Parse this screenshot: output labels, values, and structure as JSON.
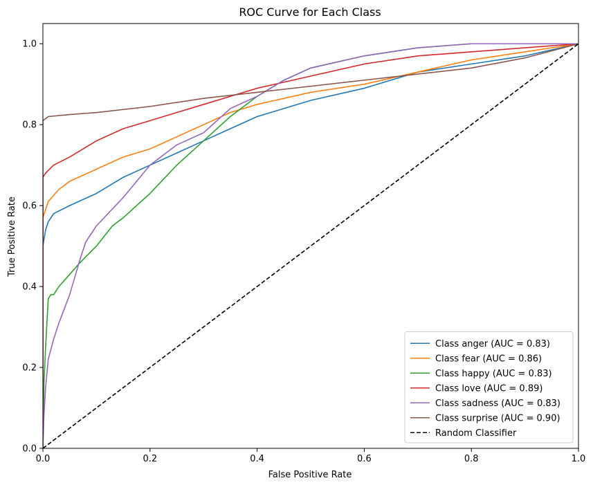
{
  "chart_data": {
    "type": "line",
    "title": "ROC Curve for Each Class",
    "xlabel": "False Positive Rate",
    "ylabel": "True Positive Rate",
    "xlim": [
      0.0,
      1.0
    ],
    "ylim": [
      0.0,
      1.05
    ],
    "xticks": [
      "0.0",
      "0.2",
      "0.4",
      "0.6",
      "0.8",
      "1.0"
    ],
    "yticks": [
      "0.0",
      "0.2",
      "0.4",
      "0.6",
      "0.8",
      "1.0"
    ],
    "grid": false,
    "legend_position": "bottom-right",
    "series": [
      {
        "name": "Class anger (AUC = 0.83)",
        "color": "#1f77b4",
        "dash": "solid",
        "x": [
          0.0,
          0.0,
          0.005,
          0.01,
          0.02,
          0.05,
          0.1,
          0.15,
          0.2,
          0.25,
          0.3,
          0.35,
          0.4,
          0.5,
          0.6,
          0.7,
          0.8,
          0.9,
          1.0
        ],
        "y": [
          0.0,
          0.5,
          0.54,
          0.56,
          0.58,
          0.6,
          0.63,
          0.67,
          0.7,
          0.73,
          0.76,
          0.79,
          0.82,
          0.86,
          0.89,
          0.93,
          0.95,
          0.97,
          1.0
        ]
      },
      {
        "name": "Class fear (AUC = 0.86)",
        "color": "#ff7f0e",
        "dash": "solid",
        "x": [
          0.0,
          0.0,
          0.005,
          0.01,
          0.03,
          0.05,
          0.1,
          0.15,
          0.2,
          0.25,
          0.3,
          0.35,
          0.4,
          0.5,
          0.6,
          0.7,
          0.8,
          0.9,
          1.0
        ],
        "y": [
          0.0,
          0.57,
          0.59,
          0.61,
          0.64,
          0.66,
          0.69,
          0.72,
          0.74,
          0.77,
          0.8,
          0.83,
          0.85,
          0.88,
          0.9,
          0.93,
          0.96,
          0.98,
          1.0
        ]
      },
      {
        "name": "Class happy (AUC = 0.83)",
        "color": "#2ca02c",
        "dash": "solid",
        "x": [
          0.0,
          0.002,
          0.005,
          0.01,
          0.015,
          0.02,
          0.03,
          0.05,
          0.07,
          0.1,
          0.13,
          0.15,
          0.2,
          0.25,
          0.3,
          0.35,
          0.4,
          0.45,
          0.5,
          0.6,
          0.7,
          0.8,
          0.9,
          1.0
        ],
        "y": [
          0.0,
          0.16,
          0.25,
          0.37,
          0.38,
          0.38,
          0.4,
          0.43,
          0.46,
          0.5,
          0.55,
          0.57,
          0.63,
          0.7,
          0.76,
          0.82,
          0.87,
          0.91,
          0.94,
          0.97,
          0.99,
          1.0,
          1.0,
          1.0
        ]
      },
      {
        "name": "Class love (AUC = 0.89)",
        "color": "#d62728",
        "dash": "solid",
        "x": [
          0.0,
          0.0,
          0.005,
          0.02,
          0.05,
          0.1,
          0.15,
          0.2,
          0.25,
          0.3,
          0.35,
          0.4,
          0.5,
          0.6,
          0.7,
          0.8,
          0.9,
          1.0
        ],
        "y": [
          0.0,
          0.67,
          0.68,
          0.7,
          0.72,
          0.76,
          0.79,
          0.81,
          0.83,
          0.85,
          0.87,
          0.89,
          0.92,
          0.95,
          0.97,
          0.98,
          0.99,
          1.0
        ]
      },
      {
        "name": "Class sadness (AUC = 0.83)",
        "color": "#9467bd",
        "dash": "solid",
        "x": [
          0.0,
          0.002,
          0.005,
          0.01,
          0.02,
          0.03,
          0.05,
          0.07,
          0.08,
          0.1,
          0.15,
          0.2,
          0.25,
          0.3,
          0.35,
          0.4,
          0.45,
          0.5,
          0.6,
          0.7,
          0.8,
          0.9,
          1.0
        ],
        "y": [
          0.0,
          0.08,
          0.15,
          0.22,
          0.27,
          0.31,
          0.38,
          0.47,
          0.51,
          0.55,
          0.62,
          0.7,
          0.75,
          0.78,
          0.84,
          0.87,
          0.91,
          0.94,
          0.97,
          0.99,
          1.0,
          1.0,
          1.0
        ]
      },
      {
        "name": "Class surprise (AUC = 0.90)",
        "color": "#8c564b",
        "dash": "solid",
        "x": [
          0.0,
          0.0,
          0.01,
          0.05,
          0.1,
          0.2,
          0.3,
          0.4,
          0.5,
          0.6,
          0.7,
          0.8,
          0.9,
          1.0
        ],
        "y": [
          0.0,
          0.81,
          0.82,
          0.825,
          0.83,
          0.845,
          0.865,
          0.88,
          0.895,
          0.91,
          0.925,
          0.94,
          0.965,
          1.0
        ]
      },
      {
        "name": "Random Classifier",
        "color": "#000000",
        "dash": "dashed",
        "x": [
          0.0,
          1.0
        ],
        "y": [
          0.0,
          1.0
        ]
      }
    ]
  }
}
